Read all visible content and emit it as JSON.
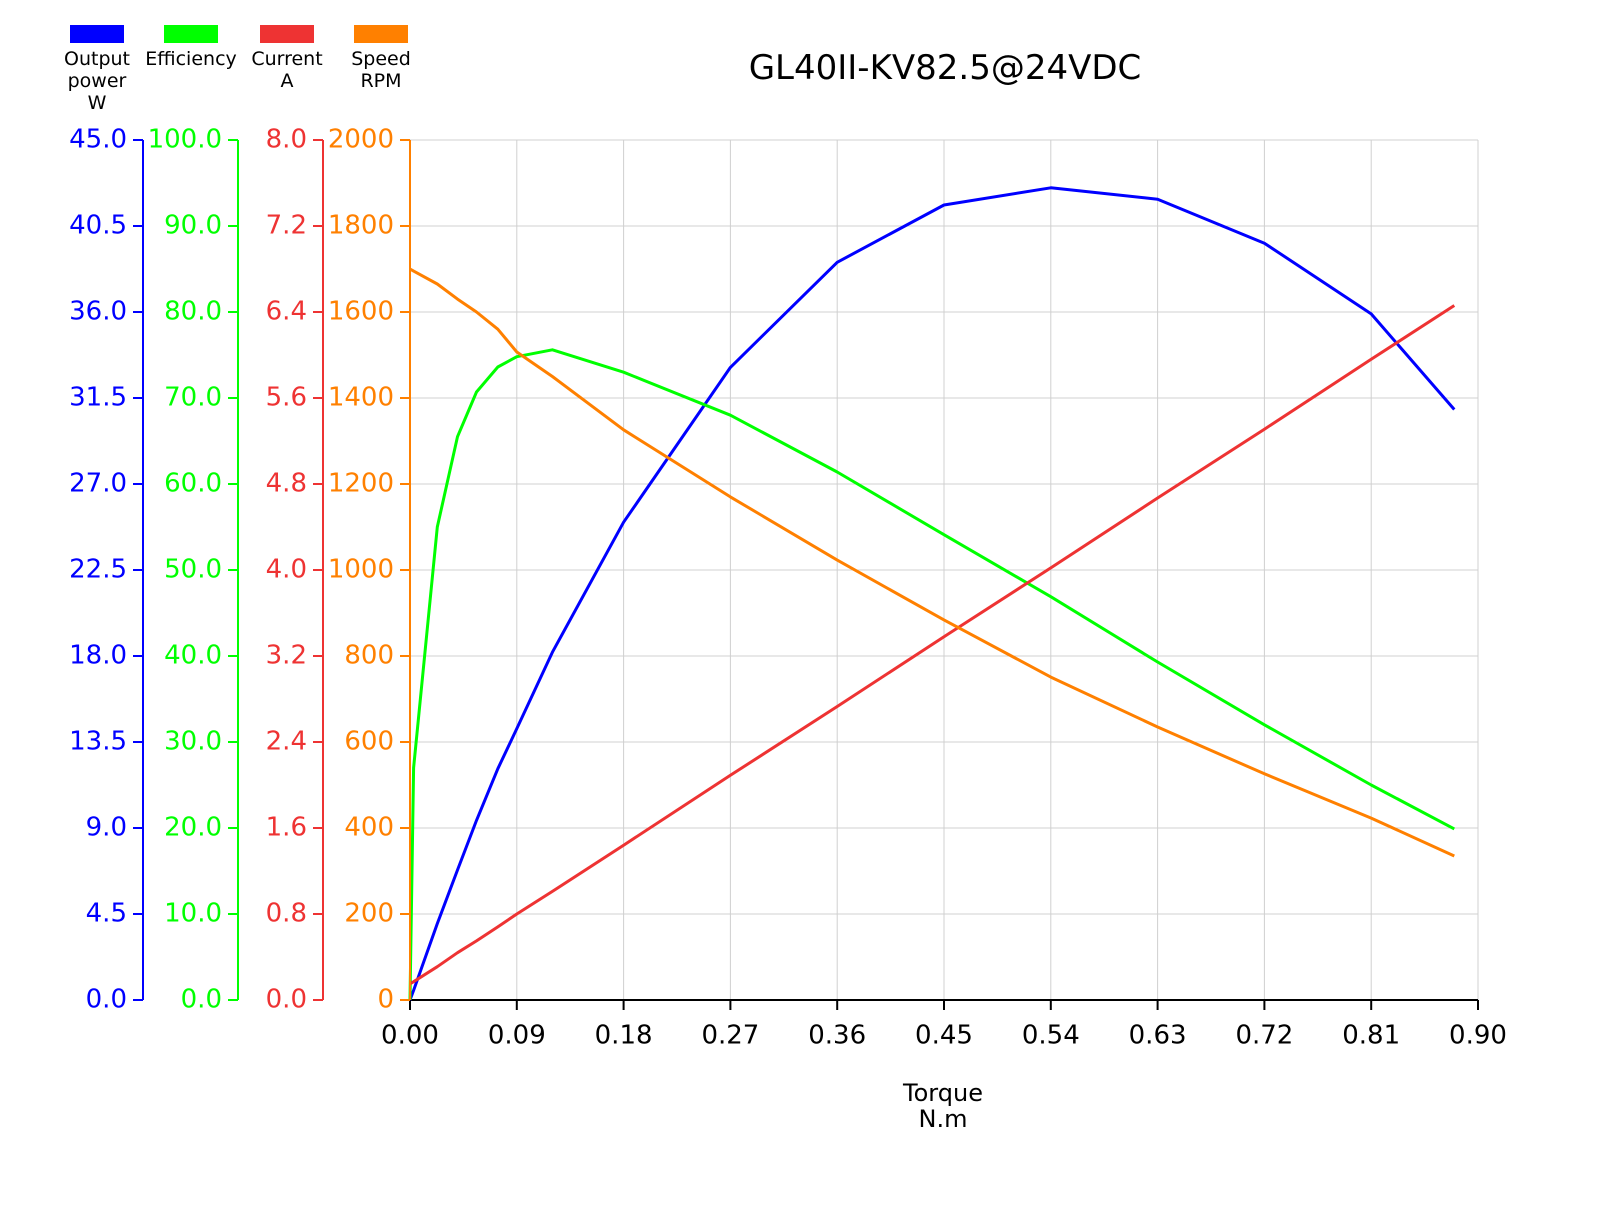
{
  "chart_data": {
    "type": "line",
    "title": "GL40II-KV82.5@24VDC",
    "x_label": "Torque\nN.m",
    "x": [
      0,
      0.003,
      0.023,
      0.04,
      0.056,
      0.074,
      0.09,
      0.12,
      0.18,
      0.27,
      0.36,
      0.45,
      0.54,
      0.63,
      0.72,
      0.81,
      0.88
    ],
    "xlim": [
      0,
      0.9
    ],
    "xticks": [
      {
        "value": 0,
        "label": "0.00"
      },
      0.09,
      0.18,
      0.27,
      0.36,
      0.45,
      0.54,
      0.63,
      0.72,
      0.81,
      {
        "value": 0.9,
        "label": "0.90"
      }
    ],
    "grid": true,
    "series": [
      {
        "name": "Output\npower\nW",
        "color": "#0000ff",
        "values": [
          0,
          0.5,
          4.0,
          6.8,
          9.4,
          12.1,
          14.2,
          18.2,
          25.0,
          33.1,
          38.6,
          41.6,
          42.5,
          41.9,
          39.6,
          35.9,
          30.9
        ],
        "ylim": [
          0,
          45
        ],
        "yticks": [
          {
            "value": 0,
            "label": "0.0"
          },
          4.5,
          {
            "value": 9,
            "label": "9.0"
          },
          13.5,
          {
            "value": 18,
            "label": "18.0"
          },
          22.5,
          {
            "value": 27,
            "label": "27.0"
          },
          31.5,
          {
            "value": 36,
            "label": "36.0"
          },
          40.5,
          {
            "value": 45,
            "label": "45.0"
          }
        ]
      },
      {
        "name": "Efficiency",
        "color": "#00ff00",
        "values": [
          0,
          27,
          55,
          65.5,
          70.7,
          73.6,
          74.8,
          75.6,
          73,
          68,
          61.4,
          54.1,
          46.9,
          39.3,
          32,
          25,
          19.9
        ],
        "ylim": [
          0,
          100
        ],
        "yticks": [
          {
            "value": 0,
            "label": "0.0"
          },
          {
            "value": 10,
            "label": "10.0"
          },
          {
            "value": 20,
            "label": "20.0"
          },
          {
            "value": 30,
            "label": "30.0"
          },
          {
            "value": 40,
            "label": "40.0"
          },
          {
            "value": 50,
            "label": "50.0"
          },
          {
            "value": 60,
            "label": "60.0"
          },
          {
            "value": 70,
            "label": "70.0"
          },
          {
            "value": 80,
            "label": "80.0"
          },
          {
            "value": 90,
            "label": "90.0"
          },
          {
            "value": 100,
            "label": "100.0"
          }
        ]
      },
      {
        "name": "Current\nA",
        "color": "#ee3333",
        "values": [
          0.15,
          0.17,
          0.31,
          0.44,
          0.55,
          0.68,
          0.8,
          1.01,
          1.44,
          2.09,
          2.73,
          3.38,
          4.02,
          4.67,
          5.31,
          5.96,
          6.46
        ],
        "ylim": [
          0,
          8
        ],
        "yticks": [
          {
            "value": 0,
            "label": "0.0"
          },
          0.8,
          1.6,
          2.4,
          3.2,
          {
            "value": 4,
            "label": "4.0"
          },
          4.8,
          5.6,
          6.4,
          7.2,
          {
            "value": 8,
            "label": "8.0"
          }
        ]
      },
      {
        "name": "Speed\nRPM",
        "color": "#ff8000",
        "values": [
          1700,
          1695,
          1665,
          1630,
          1600,
          1560,
          1507,
          1450,
          1326,
          1170,
          1023,
          884,
          751,
          635,
          526,
          423,
          335
        ],
        "ylim": [
          0,
          2000
        ],
        "yticks": [
          0,
          200,
          400,
          600,
          800,
          1000,
          1200,
          1400,
          1600,
          1800,
          2000
        ]
      }
    ]
  }
}
